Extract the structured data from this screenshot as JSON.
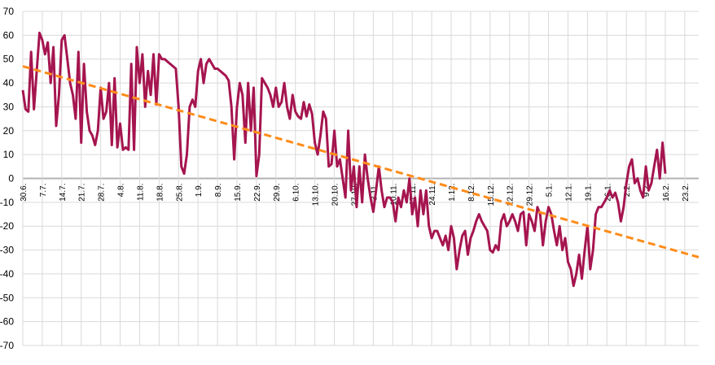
{
  "chart_data": {
    "type": "line",
    "categories": [
      "30.6.",
      null,
      null,
      null,
      null,
      null,
      null,
      "7.7.",
      null,
      null,
      null,
      null,
      null,
      null,
      "14.7.",
      null,
      null,
      null,
      null,
      null,
      null,
      "21.7.",
      null,
      null,
      null,
      null,
      null,
      null,
      "28.7.",
      null,
      null,
      null,
      null,
      null,
      null,
      "4.8.",
      null,
      null,
      null,
      null,
      null,
      null,
      "11.8.",
      null,
      null,
      null,
      null,
      null,
      null,
      "18.8.",
      null,
      null,
      null,
      null,
      null,
      null,
      "25.8.",
      null,
      null,
      null,
      null,
      null,
      null,
      "1.9.",
      null,
      null,
      null,
      null,
      null,
      null,
      "8.9.",
      null,
      null,
      null,
      null,
      null,
      null,
      "15.9.",
      null,
      null,
      null,
      null,
      null,
      null,
      "22.9.",
      null,
      null,
      null,
      null,
      null,
      null,
      "29.9.",
      null,
      null,
      null,
      null,
      null,
      null,
      "6.10.",
      null,
      null,
      null,
      null,
      null,
      null,
      "13.10.",
      null,
      null,
      null,
      null,
      null,
      null,
      "20.10.",
      null,
      null,
      null,
      null,
      null,
      null,
      "27.10.",
      null,
      null,
      null,
      null,
      null,
      null,
      "3.11.",
      null,
      null,
      null,
      null,
      null,
      null,
      "10.11.",
      null,
      null,
      null,
      null,
      null,
      null,
      "17.11.",
      null,
      null,
      null,
      null,
      null,
      null,
      "24.11.",
      null,
      null,
      null,
      null,
      null,
      null,
      "1.12.",
      null,
      null,
      null,
      null,
      null,
      null,
      "8.12.",
      null,
      null,
      null,
      null,
      null,
      null,
      "15.12.",
      null,
      null,
      null,
      null,
      null,
      null,
      "22.12.",
      null,
      null,
      null,
      null,
      null,
      null,
      "29.12.",
      null,
      null,
      null,
      null,
      null,
      null,
      "5.1.",
      null,
      null,
      null,
      null,
      null,
      null,
      "12.1.",
      null,
      null,
      null,
      null,
      null,
      null,
      "19.1.",
      null,
      null,
      null,
      null,
      null,
      null,
      "26.1.",
      null,
      null,
      null,
      null,
      null,
      null,
      "2.2.",
      null,
      null,
      null,
      null,
      null,
      null,
      "9.2.",
      null,
      null,
      null,
      null,
      null,
      null,
      "16.2.",
      null,
      null,
      null,
      null,
      null,
      null,
      "23.2.",
      null,
      null,
      null,
      null,
      null
    ],
    "series": [
      {
        "color": "#a5154f",
        "values": [
          37,
          29,
          28,
          53,
          29,
          45,
          61,
          58,
          52,
          57,
          40,
          55,
          22,
          35,
          58,
          60,
          50,
          40,
          35,
          25,
          53,
          15,
          48,
          28,
          20,
          18,
          14,
          20,
          38,
          25,
          28,
          40,
          14,
          42,
          13,
          23,
          12,
          13,
          12,
          48,
          12,
          55,
          40,
          52,
          30,
          45,
          35,
          52,
          31,
          52,
          50,
          50,
          49,
          48,
          47,
          46,
          30,
          5,
          2,
          10,
          30,
          33,
          30,
          45,
          50,
          40,
          48,
          50,
          48,
          46,
          46,
          45,
          44,
          43,
          41,
          30,
          8,
          30,
          40,
          35,
          15,
          40,
          20,
          38,
          1,
          10,
          42,
          40,
          38,
          35,
          30,
          38,
          30,
          32,
          40,
          30,
          25,
          35,
          28,
          26,
          25,
          32,
          26,
          31,
          27,
          15,
          10,
          18,
          28,
          25,
          5,
          6,
          20,
          5,
          8,
          0,
          -8,
          20,
          -5,
          5,
          -12,
          5,
          -10,
          10,
          0,
          -8,
          -14,
          -5,
          5,
          -5,
          -12,
          -8,
          -8,
          -10,
          -18,
          -8,
          -12,
          -5,
          -10,
          0,
          -15,
          -8,
          -20,
          -5,
          -15,
          -5,
          -20,
          -25,
          -22,
          -22,
          -25,
          -28,
          -24,
          -30,
          -20,
          -25,
          -38,
          -30,
          -24,
          -22,
          -32,
          -25,
          -22,
          -18,
          -15,
          -18,
          -20,
          -22,
          -30,
          -31,
          -28,
          -30,
          -18,
          -15,
          -20,
          -18,
          -15,
          -18,
          -22,
          -15,
          -14,
          -28,
          -15,
          -18,
          -22,
          -12,
          -15,
          -28,
          -18,
          -12,
          -15,
          -22,
          -28,
          -20,
          -30,
          -25,
          -35,
          -38,
          -45,
          -40,
          -32,
          -42,
          -30,
          -20,
          -38,
          -30,
          -15,
          -12,
          -12,
          -10,
          -8,
          -5,
          -8,
          -6,
          -10,
          -18,
          -12,
          -2,
          5,
          8,
          -2,
          0,
          -5,
          -8,
          5,
          -5,
          -2,
          5,
          12,
          0,
          15,
          2,
          null,
          null,
          null,
          null,
          null,
          null,
          null,
          null,
          null,
          null,
          null,
          null
        ]
      }
    ],
    "trendline": {
      "color": "#ff8c1a",
      "values": [
        47,
        -33
      ]
    },
    "ylim": [
      -70,
      70
    ],
    "yticks": [
      -70,
      -60,
      -50,
      -40,
      -30,
      -20,
      -10,
      0,
      10,
      20,
      30,
      40,
      50,
      60,
      70
    ],
    "grid": true
  }
}
